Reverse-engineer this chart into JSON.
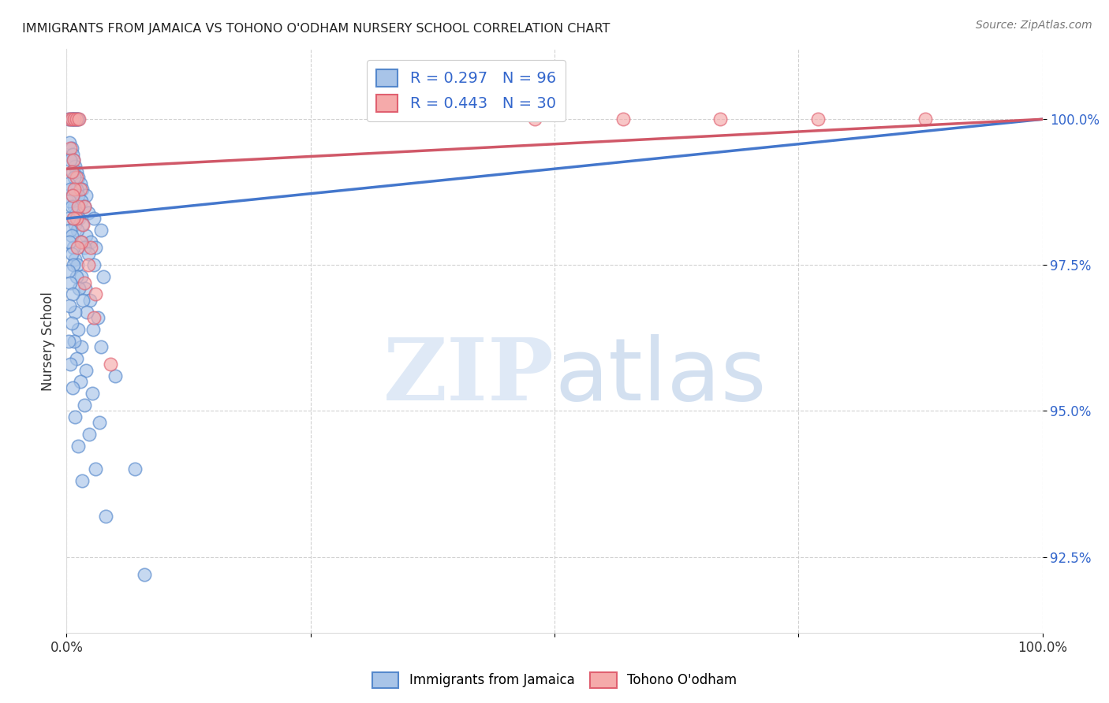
{
  "title": "IMMIGRANTS FROM JAMAICA VS TOHONO O'ODHAM NURSERY SCHOOL CORRELATION CHART",
  "source": "Source: ZipAtlas.com",
  "ylabel": "Nursery School",
  "xlim": [
    0,
    100
  ],
  "ylim_min": 91.2,
  "ylim_max": 101.2,
  "yticks": [
    92.5,
    95.0,
    97.5,
    100.0
  ],
  "ytick_labels": [
    "92.5%",
    "95.0%",
    "97.5%",
    "100.0%"
  ],
  "xtick_positions": [
    0,
    25,
    50,
    75,
    100
  ],
  "xtick_labels": [
    "0.0%",
    "",
    "",
    "",
    "100.0%"
  ],
  "blue_R": 0.297,
  "blue_N": 96,
  "pink_R": 0.443,
  "pink_N": 30,
  "blue_fill": "#A8C4E8",
  "pink_fill": "#F5AAAA",
  "blue_edge": "#5588CC",
  "pink_edge": "#E06070",
  "blue_line": "#4477CC",
  "pink_line": "#D05868",
  "legend_label_blue": "Immigrants from Jamaica",
  "legend_label_pink": "Tohono O'odham",
  "blue_line_start_y": 98.3,
  "blue_line_end_y": 100.0,
  "pink_line_start_y": 99.15,
  "pink_line_end_y": 100.0,
  "blue_points_x": [
    0.2,
    0.4,
    0.5,
    0.6,
    0.7,
    0.8,
    0.9,
    1.0,
    1.1,
    1.2,
    0.3,
    0.5,
    0.6,
    0.7,
    0.9,
    1.0,
    1.2,
    1.4,
    1.6,
    2.0,
    0.4,
    0.6,
    0.8,
    1.0,
    1.2,
    1.5,
    1.8,
    2.2,
    2.8,
    3.5,
    0.2,
    0.4,
    0.6,
    0.8,
    1.0,
    1.3,
    1.6,
    2.0,
    2.5,
    3.0,
    0.3,
    0.5,
    0.7,
    0.9,
    1.1,
    1.4,
    1.8,
    2.2,
    2.8,
    3.8,
    0.2,
    0.4,
    0.5,
    0.7,
    0.9,
    1.1,
    1.5,
    1.9,
    2.4,
    3.2,
    0.3,
    0.5,
    0.7,
    1.0,
    1.3,
    1.7,
    2.1,
    2.7,
    3.5,
    5.0,
    0.2,
    0.4,
    0.6,
    0.9,
    1.2,
    1.5,
    2.0,
    2.6,
    3.4,
    7.0,
    0.3,
    0.5,
    0.8,
    1.0,
    1.4,
    1.8,
    2.3,
    3.0,
    4.0,
    8.0,
    0.2,
    0.4,
    0.6,
    0.9,
    1.2,
    1.6
  ],
  "blue_points_y": [
    100.0,
    100.0,
    100.0,
    100.0,
    100.0,
    100.0,
    100.0,
    100.0,
    100.0,
    100.0,
    99.6,
    99.5,
    99.4,
    99.3,
    99.2,
    99.1,
    99.0,
    98.9,
    98.8,
    98.7,
    99.3,
    99.1,
    99.0,
    98.8,
    98.7,
    98.6,
    98.5,
    98.4,
    98.3,
    98.1,
    98.9,
    98.8,
    98.7,
    98.5,
    98.4,
    98.3,
    98.2,
    98.0,
    97.9,
    97.8,
    98.6,
    98.5,
    98.3,
    98.2,
    98.1,
    97.9,
    97.8,
    97.7,
    97.5,
    97.3,
    98.3,
    98.1,
    98.0,
    97.8,
    97.6,
    97.5,
    97.3,
    97.1,
    96.9,
    96.6,
    97.9,
    97.7,
    97.5,
    97.3,
    97.1,
    96.9,
    96.7,
    96.4,
    96.1,
    95.6,
    97.4,
    97.2,
    97.0,
    96.7,
    96.4,
    96.1,
    95.7,
    95.3,
    94.8,
    94.0,
    96.8,
    96.5,
    96.2,
    95.9,
    95.5,
    95.1,
    94.6,
    94.0,
    93.2,
    92.2,
    96.2,
    95.8,
    95.4,
    94.9,
    94.4,
    93.8
  ],
  "pink_points_x": [
    0.3,
    0.5,
    0.8,
    1.0,
    1.3,
    0.4,
    0.7,
    1.0,
    1.4,
    1.8,
    0.5,
    0.8,
    1.2,
    1.7,
    2.5,
    0.6,
    1.0,
    1.5,
    2.2,
    3.0,
    0.7,
    1.1,
    1.8,
    2.8,
    4.5,
    48.0,
    57.0,
    67.0,
    77.0,
    88.0
  ],
  "pink_points_y": [
    100.0,
    100.0,
    100.0,
    100.0,
    100.0,
    99.5,
    99.3,
    99.0,
    98.8,
    98.5,
    99.1,
    98.8,
    98.5,
    98.2,
    97.8,
    98.7,
    98.3,
    97.9,
    97.5,
    97.0,
    98.3,
    97.8,
    97.2,
    96.6,
    95.8,
    100.0,
    100.0,
    100.0,
    100.0,
    100.0
  ]
}
